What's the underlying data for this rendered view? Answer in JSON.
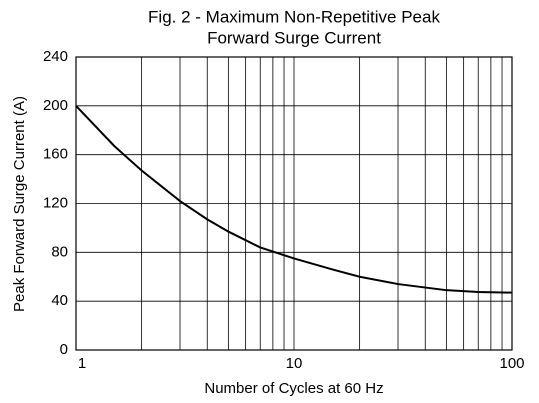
{
  "chart_data": {
    "type": "line",
    "title": [
      "Fig. 2 - Maximum Non-Repetitive Peak",
      "Forward Surge Current"
    ],
    "xlabel": "Number of Cycles at 60 Hz",
    "ylabel": "Peak Forward Surge Current (A)",
    "x": [
      1,
      1.5,
      2,
      3,
      4,
      5,
      7,
      10,
      15,
      20,
      30,
      50,
      70,
      100
    ],
    "values": [
      200,
      167,
      147,
      122,
      107,
      97,
      84,
      75,
      66,
      60,
      54,
      49,
      47.5,
      47
    ],
    "color": "#000000",
    "xscale": "log",
    "xlim": [
      1,
      100
    ],
    "xticks": [
      1,
      10,
      100
    ],
    "xminor": [
      2,
      3,
      4,
      5,
      6,
      7,
      8,
      9,
      20,
      30,
      40,
      50,
      60,
      70,
      80,
      90
    ],
    "ylim": [
      0,
      240
    ],
    "yticks": [
      0,
      40,
      80,
      120,
      160,
      200,
      240
    ],
    "grid": true
  }
}
